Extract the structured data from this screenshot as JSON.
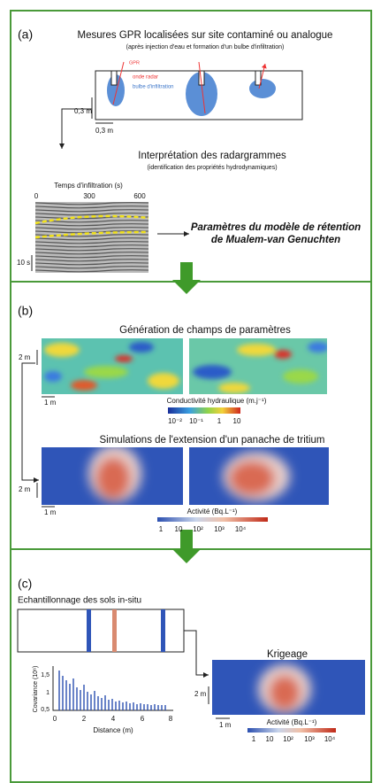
{
  "panel_a": {
    "label": "(a)",
    "title": "Mesures GPR localisées sur site contaminé ou analogue",
    "subtitle": "(après injection d'eau et formation d'un bulbe d'infiltration)",
    "gpr": "GPR",
    "radar_wave": "onde radar",
    "bulb": "bulbe d'infiltration",
    "scale_vertical": "0,3 m",
    "scale_horizontal": "0,3 m",
    "interpretation_title": "Interprétation des radargrammes",
    "interpretation_subtitle": "(identification des propriétés hydrodynamiques)",
    "time_axis_label": "Temps d'infiltration (s)",
    "time_ticks": [
      "0",
      "300",
      "600"
    ],
    "scale_time": "10 s",
    "result": [
      "Paramètres du modèle de rétention",
      "de Mualem-van Genuchten"
    ]
  },
  "panel_b": {
    "label": "(b)",
    "fields_title": "Génération de champs de paramètres",
    "fields_scale_vertical": "2 m",
    "fields_scale_horizontal": "1 m",
    "conductivity_label": "Conductivité hydraulique (m.j⁻¹)",
    "conductivity_ticks": [
      "10⁻²",
      "10⁻¹",
      "1",
      "10"
    ],
    "plume_title": "Simulations de l'extension d'un panache de tritium",
    "plume_scale_vertical": "2 m",
    "plume_scale_horizontal": "1 m",
    "activity_label": "Activité (Bq.L⁻¹)",
    "activity_ticks": [
      "1",
      "10",
      "10²",
      "10³",
      "10⁴"
    ]
  },
  "panel_c": {
    "label": "(c)",
    "sampling_title": "Echantillonnage des sols in-situ",
    "kriging_title": "Krigeage",
    "scale_vertical": "2 m",
    "scale_horizontal": "1 m",
    "activity_label": "Activité (Bq.L⁻¹)",
    "activity_ticks": [
      "1",
      "10",
      "10²",
      "10³",
      "10⁴"
    ],
    "covariance": {
      "y_label": "Covariance (10⁶)",
      "yticks": [
        "1,5",
        "1",
        "0,5"
      ],
      "x_label": "Distance (m)",
      "xticks": [
        "0",
        "2",
        "4",
        "6",
        "8"
      ]
    }
  }
}
